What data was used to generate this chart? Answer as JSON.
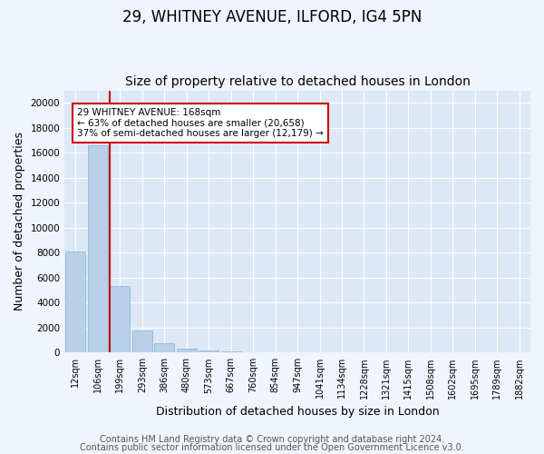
{
  "title1": "29, WHITNEY AVENUE, ILFORD, IG4 5PN",
  "title2": "Size of property relative to detached houses in London",
  "xlabel": "Distribution of detached houses by size in London",
  "ylabel": "Number of detached properties",
  "categories": [
    "12sqm",
    "106sqm",
    "199sqm",
    "293sqm",
    "386sqm",
    "480sqm",
    "573sqm",
    "667sqm",
    "760sqm",
    "854sqm",
    "947sqm",
    "1041sqm",
    "1134sqm",
    "1228sqm",
    "1321sqm",
    "1415sqm",
    "1508sqm",
    "1602sqm",
    "1695sqm",
    "1789sqm",
    "1882sqm"
  ],
  "values": [
    8100,
    16600,
    5300,
    1800,
    750,
    300,
    180,
    120,
    0,
    0,
    0,
    0,
    0,
    0,
    0,
    0,
    0,
    0,
    0,
    0,
    0
  ],
  "bar_color": "#b8d0e8",
  "bar_edge_color": "#8ab0d0",
  "vline_x": 1.55,
  "vline_color": "#cc0000",
  "annotation_title": "29 WHITNEY AVENUE: 168sqm",
  "annotation_line1": "← 63% of detached houses are smaller (20,658)",
  "annotation_line2": "37% of semi-detached houses are larger (12,179) →",
  "annotation_box_edge": "#cc0000",
  "ylim": [
    0,
    21000
  ],
  "yticks": [
    0,
    2000,
    4000,
    6000,
    8000,
    10000,
    12000,
    14000,
    16000,
    18000,
    20000
  ],
  "footer1": "Contains HM Land Registry data © Crown copyright and database right 2024.",
  "footer2": "Contains public sector information licensed under the Open Government Licence v3.0.",
  "fig_bg_color": "#f0f4fc",
  "ax_bg_color": "#dce8f5",
  "grid_color": "#ffffff",
  "title1_fontsize": 12,
  "title2_fontsize": 10,
  "tick_fontsize": 7,
  "ylabel_fontsize": 9,
  "xlabel_fontsize": 9,
  "footer_fontsize": 7
}
